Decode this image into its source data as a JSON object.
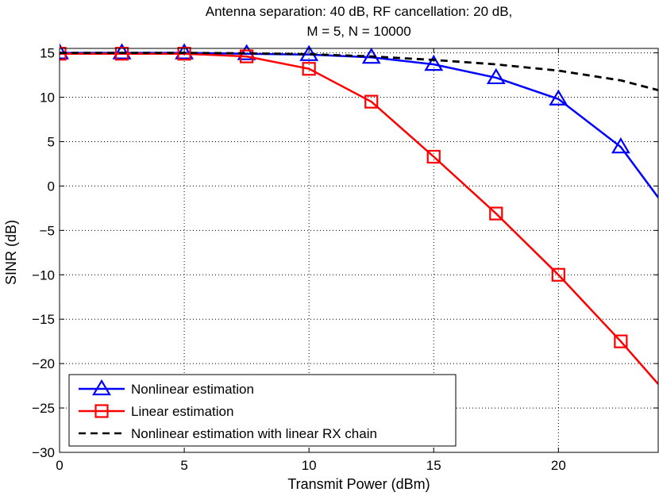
{
  "chart_data": {
    "type": "line",
    "title_lines": [
      "Antenna separation: 40 dB, RF cancellation: 20 dB,",
      "M = 5, N = 10000"
    ],
    "xlabel": "Transmit Power (dBm)",
    "ylabel": "SINR (dB)",
    "xlim": [
      0,
      24
    ],
    "ylim": [
      -30,
      15.5
    ],
    "xticks": [
      0,
      5,
      10,
      15,
      20
    ],
    "yticks": [
      -30,
      -25,
      -20,
      -15,
      -10,
      -5,
      0,
      5,
      10,
      15
    ],
    "xtick_labels": [
      "0",
      "5",
      "10",
      "15",
      "20"
    ],
    "ytick_labels": [
      "−30",
      "−25",
      "−20",
      "−15",
      "−10",
      "−5",
      "0",
      "5",
      "10",
      "15"
    ],
    "grid": true,
    "legend_position": "bottom-left",
    "series": [
      {
        "name": "Nonlinear estimation",
        "color": "#0000ff",
        "line_style": "solid",
        "marker": "triangle",
        "x": [
          0,
          2.5,
          5,
          7.5,
          10,
          12.5,
          15,
          17.5,
          20,
          22.5,
          24
        ],
        "y": [
          15,
          15,
          15,
          14.9,
          14.8,
          14.5,
          13.7,
          12.2,
          9.8,
          4.4,
          -1.3
        ],
        "marker_x": [
          0,
          2.5,
          5,
          7.5,
          10,
          12.5,
          15,
          17.5,
          20,
          22.5
        ]
      },
      {
        "name": "Linear estimation",
        "color": "#ff0000",
        "line_style": "solid",
        "marker": "square",
        "x": [
          0,
          2.5,
          5,
          7.5,
          10,
          12.5,
          15,
          17.5,
          20,
          22.5,
          24
        ],
        "y": [
          14.9,
          14.9,
          14.9,
          14.6,
          13.2,
          9.5,
          3.3,
          -3.1,
          -10.0,
          -17.5,
          -22.3
        ],
        "marker_x": [
          0,
          2.5,
          5,
          7.5,
          10,
          12.5,
          15,
          17.5,
          20,
          22.5
        ]
      },
      {
        "name": "Nonlinear estimation with linear RX chain",
        "color": "#000000",
        "line_style": "dashed",
        "marker": "none",
        "x": [
          0,
          2.5,
          5,
          7.5,
          10,
          12.5,
          15,
          17.5,
          20,
          22.5,
          24
        ],
        "y": [
          15,
          15,
          15,
          14.95,
          14.85,
          14.6,
          14.2,
          13.7,
          13.0,
          11.9,
          10.8
        ],
        "marker_x": []
      }
    ]
  }
}
